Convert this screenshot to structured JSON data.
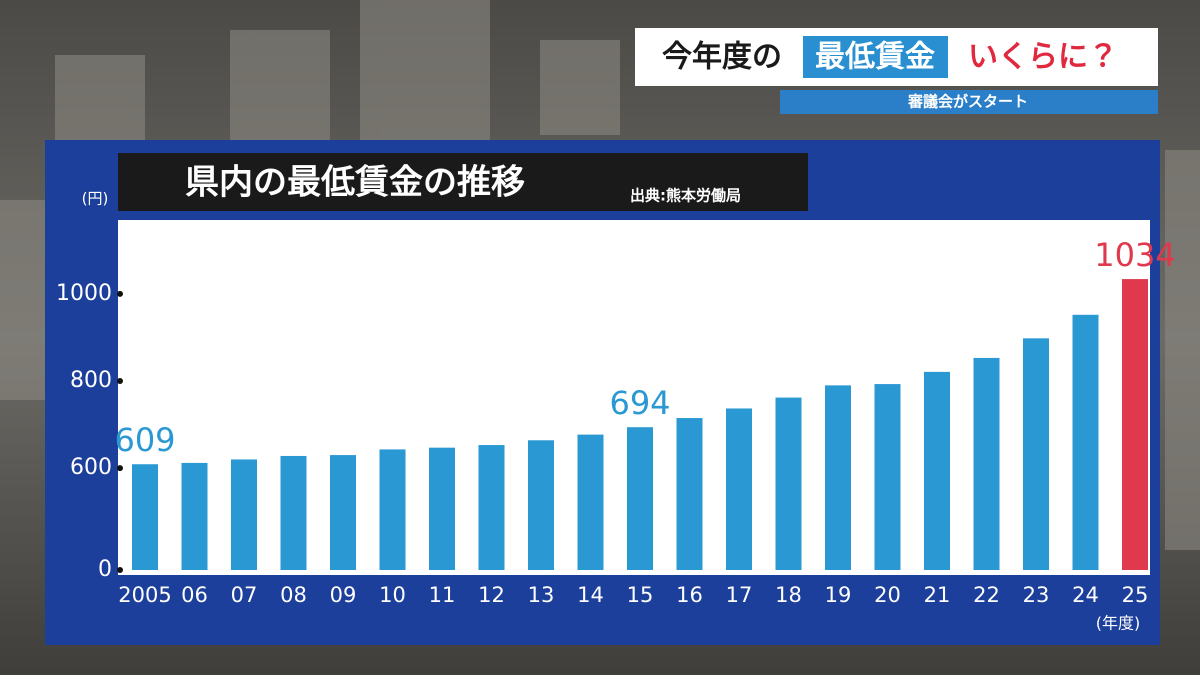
{
  "header": {
    "title_lead": "今年度の",
    "title_highlight": "最低賃金",
    "title_tail": "いくらに？",
    "subtitle": "審議会がスタート"
  },
  "chart_data": {
    "type": "bar",
    "title": "県内の最低賃金の推移",
    "source": "出典:熊本労働局",
    "y_unit": "(円)",
    "x_unit": "(年度)",
    "categories": [
      "2005",
      "06",
      "07",
      "08",
      "09",
      "10",
      "11",
      "12",
      "13",
      "14",
      "15",
      "16",
      "17",
      "18",
      "19",
      "20",
      "21",
      "22",
      "23",
      "24",
      "25"
    ],
    "values": [
      609,
      612,
      620,
      628,
      630,
      643,
      647,
      653,
      664,
      677,
      694,
      715,
      737,
      762,
      790,
      793,
      821,
      853,
      898,
      952,
      1034
    ],
    "value_labels": [
      "609",
      null,
      null,
      null,
      null,
      null,
      null,
      null,
      null,
      null,
      "694",
      null,
      null,
      null,
      null,
      null,
      null,
      null,
      null,
      null,
      "1034"
    ],
    "colors": [
      "#2a98d2",
      "#2a98d2",
      "#2a98d2",
      "#2a98d2",
      "#2a98d2",
      "#2a98d2",
      "#2a98d2",
      "#2a98d2",
      "#2a98d2",
      "#2a98d2",
      "#2a98d2",
      "#2a98d2",
      "#2a98d2",
      "#2a98d2",
      "#2a98d2",
      "#2a98d2",
      "#2a98d2",
      "#2a98d2",
      "#2a98d2",
      "#2a98d2",
      "#e0394e"
    ],
    "ylim": [
      0,
      1165
    ],
    "y_break": 380,
    "yticks": [
      0,
      600,
      800,
      1000
    ]
  }
}
